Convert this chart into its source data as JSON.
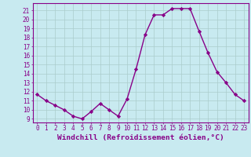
{
  "x": [
    0,
    1,
    2,
    3,
    4,
    5,
    6,
    7,
    8,
    9,
    10,
    11,
    12,
    13,
    14,
    15,
    16,
    17,
    18,
    19,
    20,
    21,
    22,
    23
  ],
  "y": [
    11.7,
    11.0,
    10.5,
    10.0,
    9.3,
    9.0,
    9.8,
    10.7,
    10.0,
    9.3,
    11.2,
    14.5,
    18.3,
    20.5,
    20.5,
    21.2,
    21.2,
    21.2,
    18.7,
    16.3,
    14.2,
    13.0,
    11.7,
    11.0
  ],
  "line_color": "#880088",
  "marker": "D",
  "marker_size": 2.2,
  "bg_color": "#c8eaf0",
  "grid_color": "#aacccc",
  "xlabel": "Windchill (Refroidissement éolien,°C)",
  "ylabel_ticks": [
    9,
    10,
    11,
    12,
    13,
    14,
    15,
    16,
    17,
    18,
    19,
    20,
    21
  ],
  "ylim": [
    8.6,
    21.8
  ],
  "xlim": [
    -0.5,
    23.5
  ],
  "tick_label_fontsize": 5.5,
  "xlabel_fontsize": 6.8,
  "line_width": 1.0
}
